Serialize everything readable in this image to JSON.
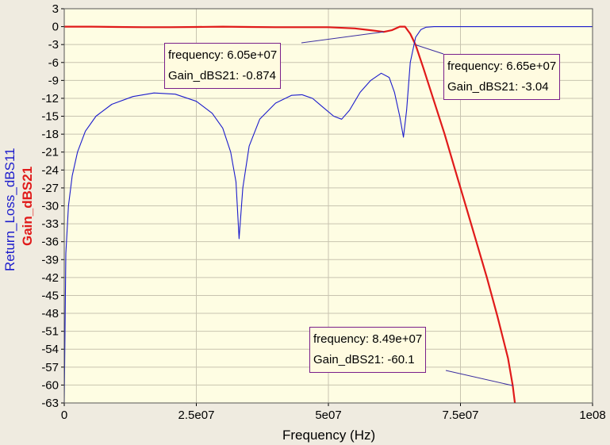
{
  "chart_data": {
    "type": "line",
    "xlabel": "Frequency (Hz)",
    "ylabels": [
      {
        "text": "Return_Loss_dBS11",
        "color": "#1c1ccc"
      },
      {
        "text": "Gain_dBS21",
        "color": "#e01a1a"
      }
    ],
    "xlim": [
      0,
      100000000
    ],
    "ylim": [
      -63,
      3
    ],
    "x_ticks": [
      {
        "value": 0,
        "label": "0"
      },
      {
        "value": 25000000,
        "label": "2.5e07"
      },
      {
        "value": 50000000,
        "label": "5e07"
      },
      {
        "value": 75000000,
        "label": "7.5e07"
      },
      {
        "value": 100000000,
        "label": "1e08"
      }
    ],
    "y_ticks": [
      3,
      0,
      -3,
      -6,
      -9,
      -12,
      -15,
      -18,
      -21,
      -24,
      -27,
      -30,
      -33,
      -36,
      -39,
      -42,
      -45,
      -48,
      -51,
      -54,
      -57,
      -60,
      -63
    ],
    "grid": true,
    "colors": {
      "background": "#fefde3",
      "grid": "#c8c4b0",
      "gain": "#e01a1a",
      "return_loss": "#1c1ccc",
      "marker_border": "#7a1f8a"
    },
    "series": [
      {
        "name": "Gain_dBS21",
        "color": "#e01a1a",
        "x": [
          0,
          5000000,
          10000000,
          15000000,
          20000000,
          25000000,
          30000000,
          35000000,
          40000000,
          45000000,
          50000000,
          55000000,
          58000000,
          60500000,
          62000000,
          63500000,
          64500000,
          65500000,
          66500000,
          68000000,
          70000000,
          72000000,
          74000000,
          76000000,
          78000000,
          80000000,
          82000000,
          84000000,
          84900000,
          85300000
        ],
        "y": [
          0,
          0,
          -0.05,
          -0.1,
          -0.1,
          -0.05,
          0,
          -0.05,
          -0.1,
          -0.1,
          -0.1,
          -0.3,
          -0.6,
          -0.874,
          -0.6,
          0,
          0,
          -1.2,
          -3.04,
          -7,
          -12.5,
          -18,
          -24,
          -30,
          -36,
          -42,
          -48.5,
          -55.5,
          -60.1,
          -63
        ]
      },
      {
        "name": "Return_Loss_dBS11",
        "color": "#1c1ccc",
        "x": [
          0,
          300000,
          800000,
          1500000,
          2500000,
          4000000,
          6000000,
          9000000,
          13000000,
          17000000,
          21000000,
          25000000,
          28000000,
          30000000,
          31500000,
          32500000,
          33100000,
          33800000,
          35000000,
          37000000,
          40000000,
          43000000,
          45000000,
          47000000,
          49000000,
          51000000,
          52500000,
          54000000,
          56000000,
          58000000,
          60000000,
          61500000,
          62500000,
          63500000,
          64200000,
          64800000,
          65500000,
          66500000,
          67500000,
          68500000,
          70000000,
          72000000,
          75000000,
          80000000,
          90000000,
          100000000
        ],
        "y": [
          -63,
          -38,
          -30,
          -25,
          -21,
          -17.5,
          -15,
          -13,
          -11.7,
          -11.1,
          -11.3,
          -12.5,
          -14.5,
          -17,
          -21,
          -26,
          -35.5,
          -27,
          -20,
          -15.5,
          -12.8,
          -11.5,
          -11.4,
          -12,
          -13.5,
          -15,
          -15.5,
          -14,
          -11,
          -9,
          -7.8,
          -8.5,
          -11,
          -15,
          -18.5,
          -14,
          -6,
          -1.8,
          -0.5,
          -0.1,
          0,
          0,
          0,
          0,
          0,
          0
        ]
      }
    ],
    "markers": [
      {
        "frequency_text": "frequency: 6.05e+07",
        "gain_text": "Gain_dBS21: -0.874",
        "x": 60500000,
        "y": -0.874
      },
      {
        "frequency_text": "frequency: 6.65e+07",
        "gain_text": "Gain_dBS21: -3.04",
        "x": 66500000,
        "y": -3.04
      },
      {
        "frequency_text": "frequency: 8.49e+07",
        "gain_text": "Gain_dBS21: -60.1",
        "x": 84900000,
        "y": -60.1
      }
    ]
  }
}
